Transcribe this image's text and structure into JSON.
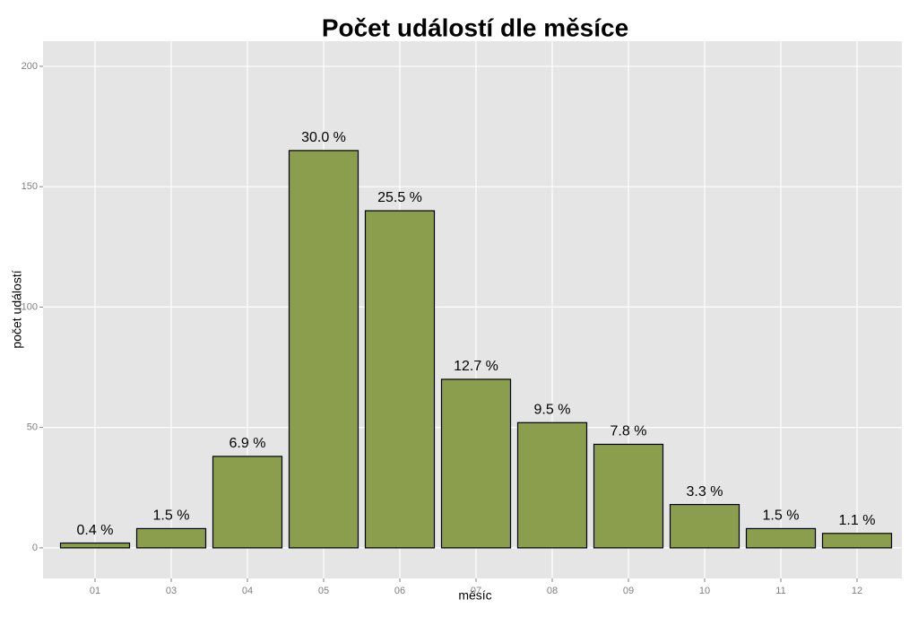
{
  "chart_data": {
    "type": "bar",
    "title": "Počet událostí dle měsíce",
    "x_label": "měsíc",
    "y_label": "počet událostí",
    "categories": [
      "01",
      "03",
      "04",
      "05",
      "06",
      "07",
      "08",
      "09",
      "10",
      "11",
      "12"
    ],
    "values": [
      2,
      8,
      38,
      165,
      140,
      70,
      52,
      43,
      18,
      8,
      6
    ],
    "bar_labels": [
      "0.4 %",
      "1.5 %",
      "6.9 %",
      "30.0 %",
      "25.5 %",
      "12.7 %",
      "9.5 %",
      "7.8 %",
      "3.3 %",
      "1.5 %",
      "1.1 %"
    ],
    "color": "#8b9e4e",
    "ylim": [
      -12.7,
      210.4
    ],
    "yticks": [
      0,
      50,
      100,
      150,
      200
    ],
    "grid": true
  }
}
